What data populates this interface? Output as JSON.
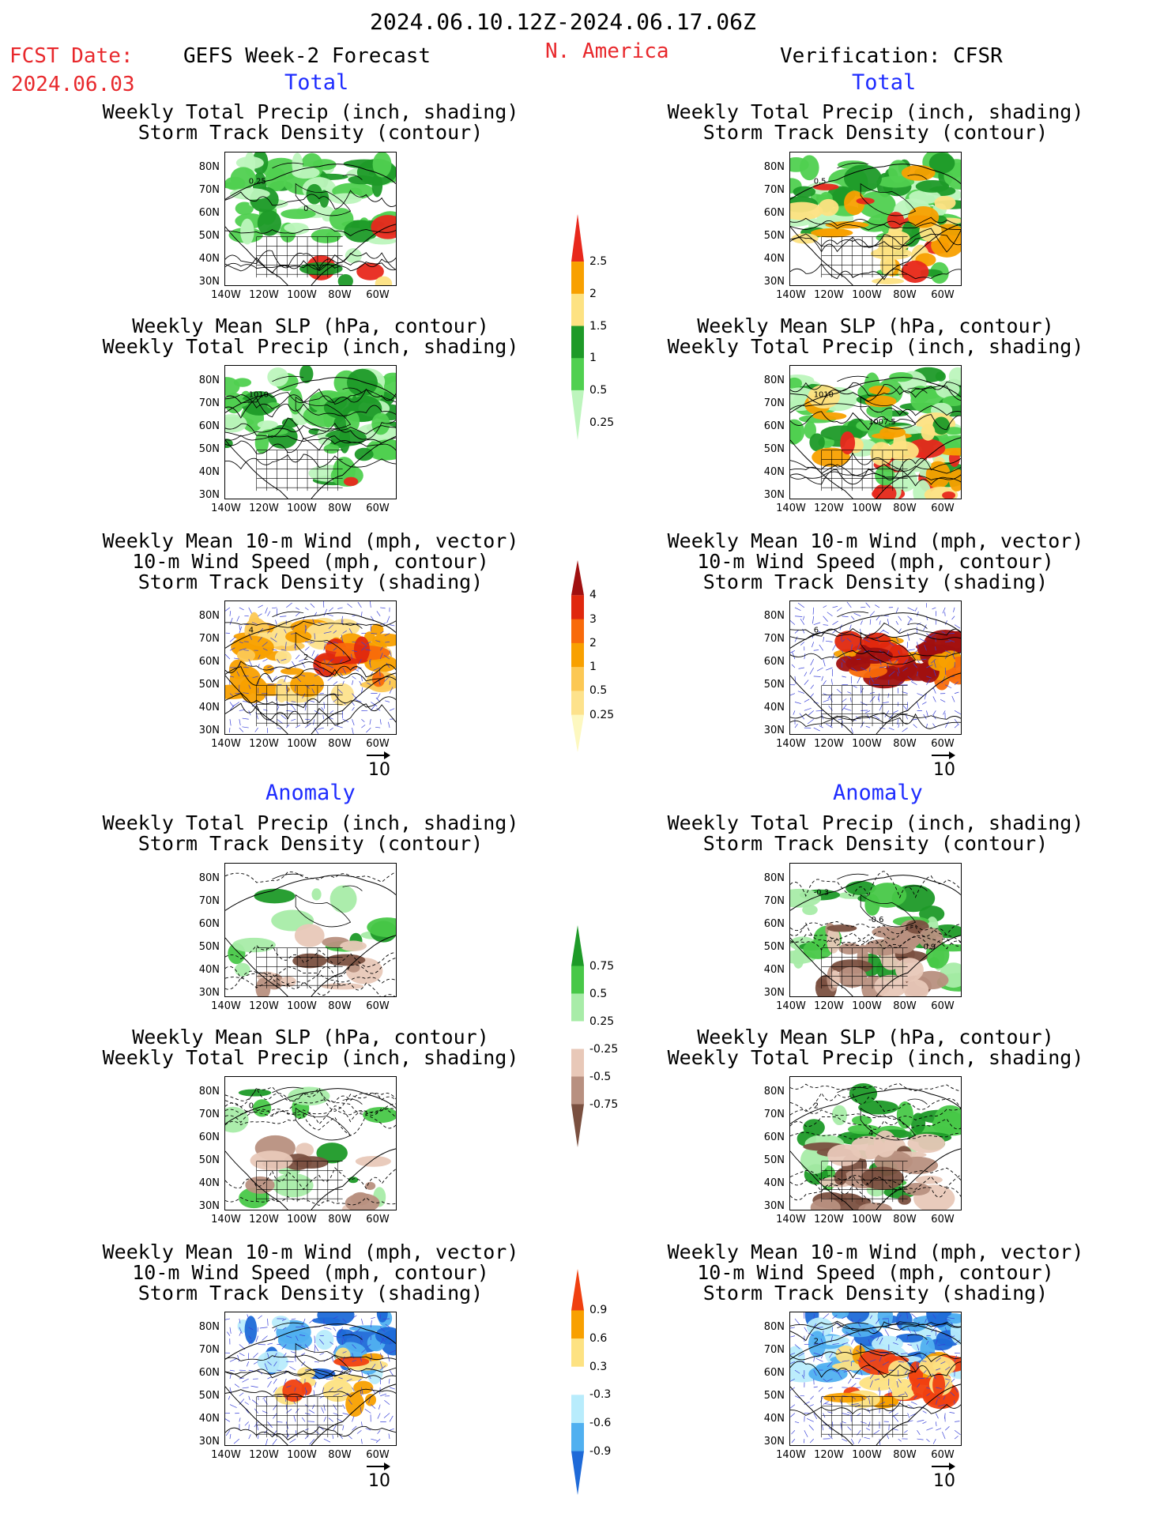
{
  "header": {
    "period": "2024.06.10.12Z-2024.06.17.06Z",
    "fcst_label": "FCST Date:",
    "fcst_date": "2024.06.03",
    "forecast_title": "GEFS Week-2 Forecast",
    "region": "N. America",
    "verification": "Verification: CFSR"
  },
  "sections": {
    "total": "Total",
    "anomaly": "Anomaly"
  },
  "titles": {
    "precip_track": [
      "Weekly Total Precip (inch, shading)",
      "Storm Track Density (contour)"
    ],
    "slp_precip": [
      "Weekly Mean SLP (hPa, contour)",
      "Weekly Total Precip (inch, shading)"
    ],
    "wind_track": [
      "Weekly Mean 10-m Wind (mph, vector)",
      "10-m Wind Speed (mph, contour)",
      "Storm Track Density (shading)"
    ]
  },
  "axes": {
    "lat": [
      "80N",
      "70N",
      "60N",
      "50N",
      "40N",
      "30N"
    ],
    "lon": [
      "140W",
      "120W",
      "100W",
      "80W",
      "60W"
    ]
  },
  "wind_ref": "10",
  "contour_labels": {
    "fcst_precip_total": [
      "0.25",
      "0"
    ],
    "obs_precip_total": [
      "0.5"
    ],
    "fcst_slp_total": [
      "1010"
    ],
    "obs_slp_total": [
      "1010",
      "1007.5"
    ],
    "fcst_wind_total": [
      "4",
      "2"
    ],
    "obs_wind_total": [
      "6"
    ],
    "obs_precip_anom": [
      "-0.3",
      "-0.6",
      "0.9"
    ],
    "fcst_slp_anom": [
      "0"
    ],
    "obs_slp_anom": [
      "2",
      "4"
    ],
    "obs_wind_anom": [
      "2"
    ]
  },
  "colorbars": {
    "precip_total": {
      "labels": [
        "2.5",
        "2",
        "1.5",
        "1",
        "0.5",
        "0.25"
      ],
      "colors": [
        "#e8281c",
        "#f8a000",
        "#fde282",
        "#1e9a28",
        "#50d050",
        "#bdf5bd"
      ]
    },
    "track_total": {
      "labels": [
        "4",
        "3",
        "2",
        "1",
        "0.5",
        "0.25"
      ],
      "colors": [
        "#a01010",
        "#e0280e",
        "#f86a0a",
        "#f8a000",
        "#fcc854",
        "#fde28c",
        "#fdf8c0"
      ]
    },
    "precip_anom": {
      "labels": [
        "0.75",
        "0.5",
        "0.25",
        "-0.25",
        "-0.5",
        "-0.75"
      ],
      "colors": [
        "#1e9a28",
        "#48c848",
        "#a8eca8",
        "#ffffff",
        "#e8c8b8",
        "#b89080",
        "#7a5040"
      ]
    },
    "track_anom": {
      "labels": [
        "0.9",
        "0.6",
        "0.3",
        "-0.3",
        "-0.6",
        "-0.9"
      ],
      "colors": [
        "#f04010",
        "#f8a000",
        "#fde282",
        "#ffffff",
        "#b8ecfc",
        "#50b0f0",
        "#1e6ad8"
      ]
    }
  }
}
